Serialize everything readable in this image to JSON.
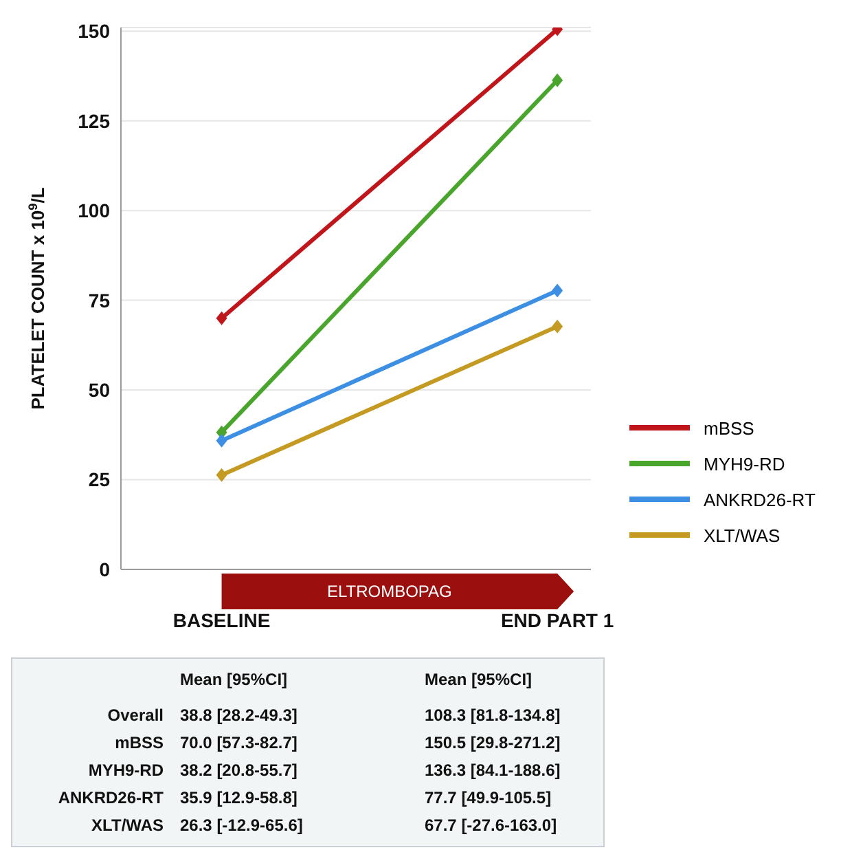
{
  "chart_data": {
    "type": "line",
    "ylabel": "PLATELET COUNT x 10$^{9}$/L",
    "categories": [
      "BASELINE",
      "END PART 1"
    ],
    "series": [
      {
        "name": "mBSS",
        "color": "#c0161b",
        "values": [
          70.0,
          150.5
        ]
      },
      {
        "name": "MYH9-RD",
        "color": "#4aa52c",
        "values": [
          38.2,
          136.3
        ]
      },
      {
        "name": "ANKRD26-RT",
        "color": "#3d8fe3",
        "values": [
          35.9,
          77.7
        ]
      },
      {
        "name": "XLT/WAS",
        "color": "#c49a22",
        "values": [
          26.3,
          67.7
        ]
      }
    ],
    "ylim": [
      0,
      151
    ],
    "yticks": [
      0,
      25,
      50,
      75,
      100,
      125,
      150
    ],
    "grid": "y",
    "legend": "right",
    "marker": "diamond",
    "line_style": "solid",
    "annotations": [
      "ELTROMBOPAG",
      "Mean [95%CI]",
      "Mean [95%CI]",
      "Overall",
      "38.8 [28.2-49.3]",
      "108.3 [81.8-134.8]",
      "mBSS",
      "70.0 [57.3-82.7]",
      "150.5 [29.8-271.2]",
      "MYH9-RD",
      "38.2 [20.8-55.7]",
      "136.3 [84.1-188.6]",
      "ANKRD26-RT",
      "35.9 [12.9-58.8]",
      "77.7 [49.9-105.5]",
      "XLT/WAS",
      "26.3 [-12.9-65.6]",
      "67.7 [-27.6-163.0]"
    ]
  }
}
